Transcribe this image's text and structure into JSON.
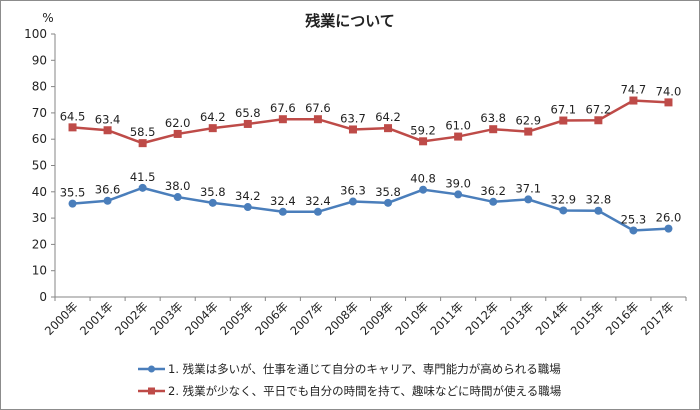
{
  "chart_data": {
    "type": "line",
    "title": "残業について",
    "ylabel": "%",
    "xlabel": "",
    "ylim": [
      0,
      100
    ],
    "yticks": [
      0,
      10,
      20,
      30,
      40,
      50,
      60,
      70,
      80,
      90,
      100
    ],
    "grid": false,
    "legend_position": "bottom",
    "categories": [
      "2000年",
      "2001年",
      "2002年",
      "2003年",
      "2004年",
      "2005年",
      "2006年",
      "2007年",
      "2008年",
      "2009年",
      "2010年",
      "2011年",
      "2012年",
      "2013年",
      "2014年",
      "2015年",
      "2016年",
      "2017年"
    ],
    "series": [
      {
        "name": "1.  残業は多いが、仕事を通じて自分のキャリア、専門能力が高められる職場",
        "color": "#4a7ebb",
        "marker": "circle",
        "values": [
          35.5,
          36.6,
          41.5,
          38.0,
          35.8,
          34.2,
          32.4,
          32.4,
          36.3,
          35.8,
          40.8,
          39.0,
          36.2,
          37.1,
          32.9,
          32.8,
          25.3,
          26.0
        ]
      },
      {
        "name": "2.  残業が少なく、平日でも自分の時間を持て、趣味などに時間が使える職場",
        "color": "#be4b48",
        "marker": "square",
        "values": [
          64.5,
          63.4,
          58.5,
          62.0,
          64.2,
          65.8,
          67.6,
          67.6,
          63.7,
          64.2,
          59.2,
          61.0,
          63.8,
          62.9,
          67.1,
          67.2,
          74.7,
          74.0
        ]
      }
    ]
  }
}
